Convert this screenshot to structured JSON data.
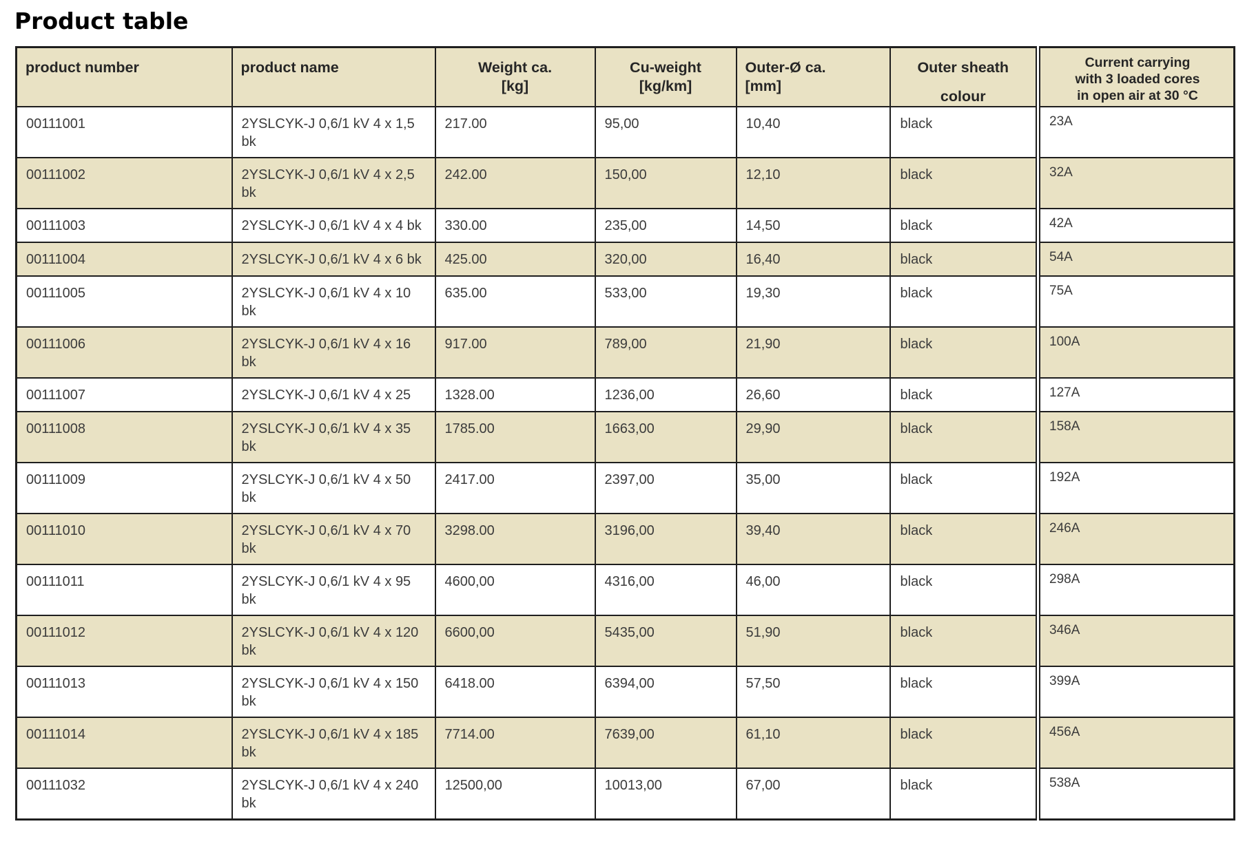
{
  "page_title": "Product table",
  "colors": {
    "row_alt": "#e9e2c4",
    "row_base": "#ffffff",
    "border": "#1e1e1e",
    "text": "#3b3b3b",
    "header_text": "#262626"
  },
  "table": {
    "header": {
      "product_number": "product number",
      "product_name": "product name",
      "weight_line1": "Weight ca.",
      "weight_line2": "[kg]",
      "cu_line1": "Cu-weight",
      "cu_line2": "[kg/km]",
      "outer_line1": "Outer-Ø ca.",
      "outer_line2": "[mm]",
      "sheath_line1": "Outer sheath",
      "sheath_line2": "colour",
      "current_lines": [
        "Current carrying",
        "with 3 loaded cores",
        "in open air at 30 °C"
      ]
    },
    "rows": [
      {
        "product_number": "00111001",
        "name_lines": [
          "2YSLCYK-J 0,6/1 kV 4 x 1,5",
          "bk"
        ],
        "weight": "217.00",
        "cu_weight": "95,00",
        "outer_diameter": "10,40",
        "sheath_colour": "black",
        "current": "23A"
      },
      {
        "product_number": "00111002",
        "name_lines": [
          "2YSLCYK-J 0,6/1 kV 4 x 2,5",
          "bk"
        ],
        "weight": "242.00",
        "cu_weight": "150,00",
        "outer_diameter": "12,10",
        "sheath_colour": "black",
        "current": "32A"
      },
      {
        "product_number": "00111003",
        "name_lines": [
          "2YSLCYK-J 0,6/1 kV 4 x 4 bk"
        ],
        "weight": "330.00",
        "cu_weight": "235,00",
        "outer_diameter": "14,50",
        "sheath_colour": "black",
        "current": "42A"
      },
      {
        "product_number": "00111004",
        "name_lines": [
          "2YSLCYK-J 0,6/1 kV 4 x 6 bk"
        ],
        "weight": "425.00",
        "cu_weight": "320,00",
        "outer_diameter": "16,40",
        "sheath_colour": "black",
        "current": "54A"
      },
      {
        "product_number": "00111005",
        "name_lines": [
          "2YSLCYK-J 0,6/1 kV 4 x 10",
          "bk"
        ],
        "weight": "635.00",
        "cu_weight": "533,00",
        "outer_diameter": "19,30",
        "sheath_colour": "black",
        "current": "75A"
      },
      {
        "product_number": "00111006",
        "name_lines": [
          "2YSLCYK-J 0,6/1 kV 4 x 16",
          "bk"
        ],
        "weight": "917.00",
        "cu_weight": "789,00",
        "outer_diameter": "21,90",
        "sheath_colour": "black",
        "current": "100A"
      },
      {
        "product_number": "00111007",
        "name_lines": [
          "2YSLCYK-J 0,6/1 kV 4 x 25"
        ],
        "weight": "1328.00",
        "cu_weight": "1236,00",
        "outer_diameter": "26,60",
        "sheath_colour": "black",
        "current": "127A"
      },
      {
        "product_number": "00111008",
        "name_lines": [
          "2YSLCYK-J 0,6/1 kV 4 x 35",
          "bk"
        ],
        "weight": "1785.00",
        "cu_weight": "1663,00",
        "outer_diameter": "29,90",
        "sheath_colour": "black",
        "current": "158A"
      },
      {
        "product_number": "00111009",
        "name_lines": [
          "2YSLCYK-J 0,6/1 kV 4 x 50",
          "bk"
        ],
        "weight": "2417.00",
        "cu_weight": "2397,00",
        "outer_diameter": "35,00",
        "sheath_colour": "black",
        "current": "192A"
      },
      {
        "product_number": "00111010",
        "name_lines": [
          "2YSLCYK-J 0,6/1 kV 4 x 70",
          "bk"
        ],
        "weight": "3298.00",
        "cu_weight": "3196,00",
        "outer_diameter": "39,40",
        "sheath_colour": "black",
        "current": "246A"
      },
      {
        "product_number": "00111011",
        "name_lines": [
          "2YSLCYK-J 0,6/1 kV 4 x 95",
          "bk"
        ],
        "weight": "4600,00",
        "cu_weight": "4316,00",
        "outer_diameter": "46,00",
        "sheath_colour": "black",
        "current": "298A"
      },
      {
        "product_number": "00111012",
        "name_lines": [
          "2YSLCYK-J 0,6/1 kV 4 x 120",
          "bk"
        ],
        "weight": "6600,00",
        "cu_weight": "5435,00",
        "outer_diameter": "51,90",
        "sheath_colour": "black",
        "current": "346A"
      },
      {
        "product_number": "00111013",
        "name_lines": [
          "2YSLCYK-J 0,6/1 kV 4 x 150",
          "bk"
        ],
        "weight": "6418.00",
        "cu_weight": "6394,00",
        "outer_diameter": "57,50",
        "sheath_colour": "black",
        "current": "399A"
      },
      {
        "product_number": "00111014",
        "name_lines": [
          "2YSLCYK-J 0,6/1 kV 4 x 185",
          "bk"
        ],
        "weight": "7714.00",
        "cu_weight": "7639,00",
        "outer_diameter": "61,10",
        "sheath_colour": "black",
        "current": "456A"
      },
      {
        "product_number": "00111032",
        "name_lines": [
          "2YSLCYK-J 0,6/1 kV 4 x 240",
          "bk"
        ],
        "weight": "12500,00",
        "cu_weight": "10013,00",
        "outer_diameter": "67,00",
        "sheath_colour": "black",
        "current": "538A"
      }
    ]
  }
}
